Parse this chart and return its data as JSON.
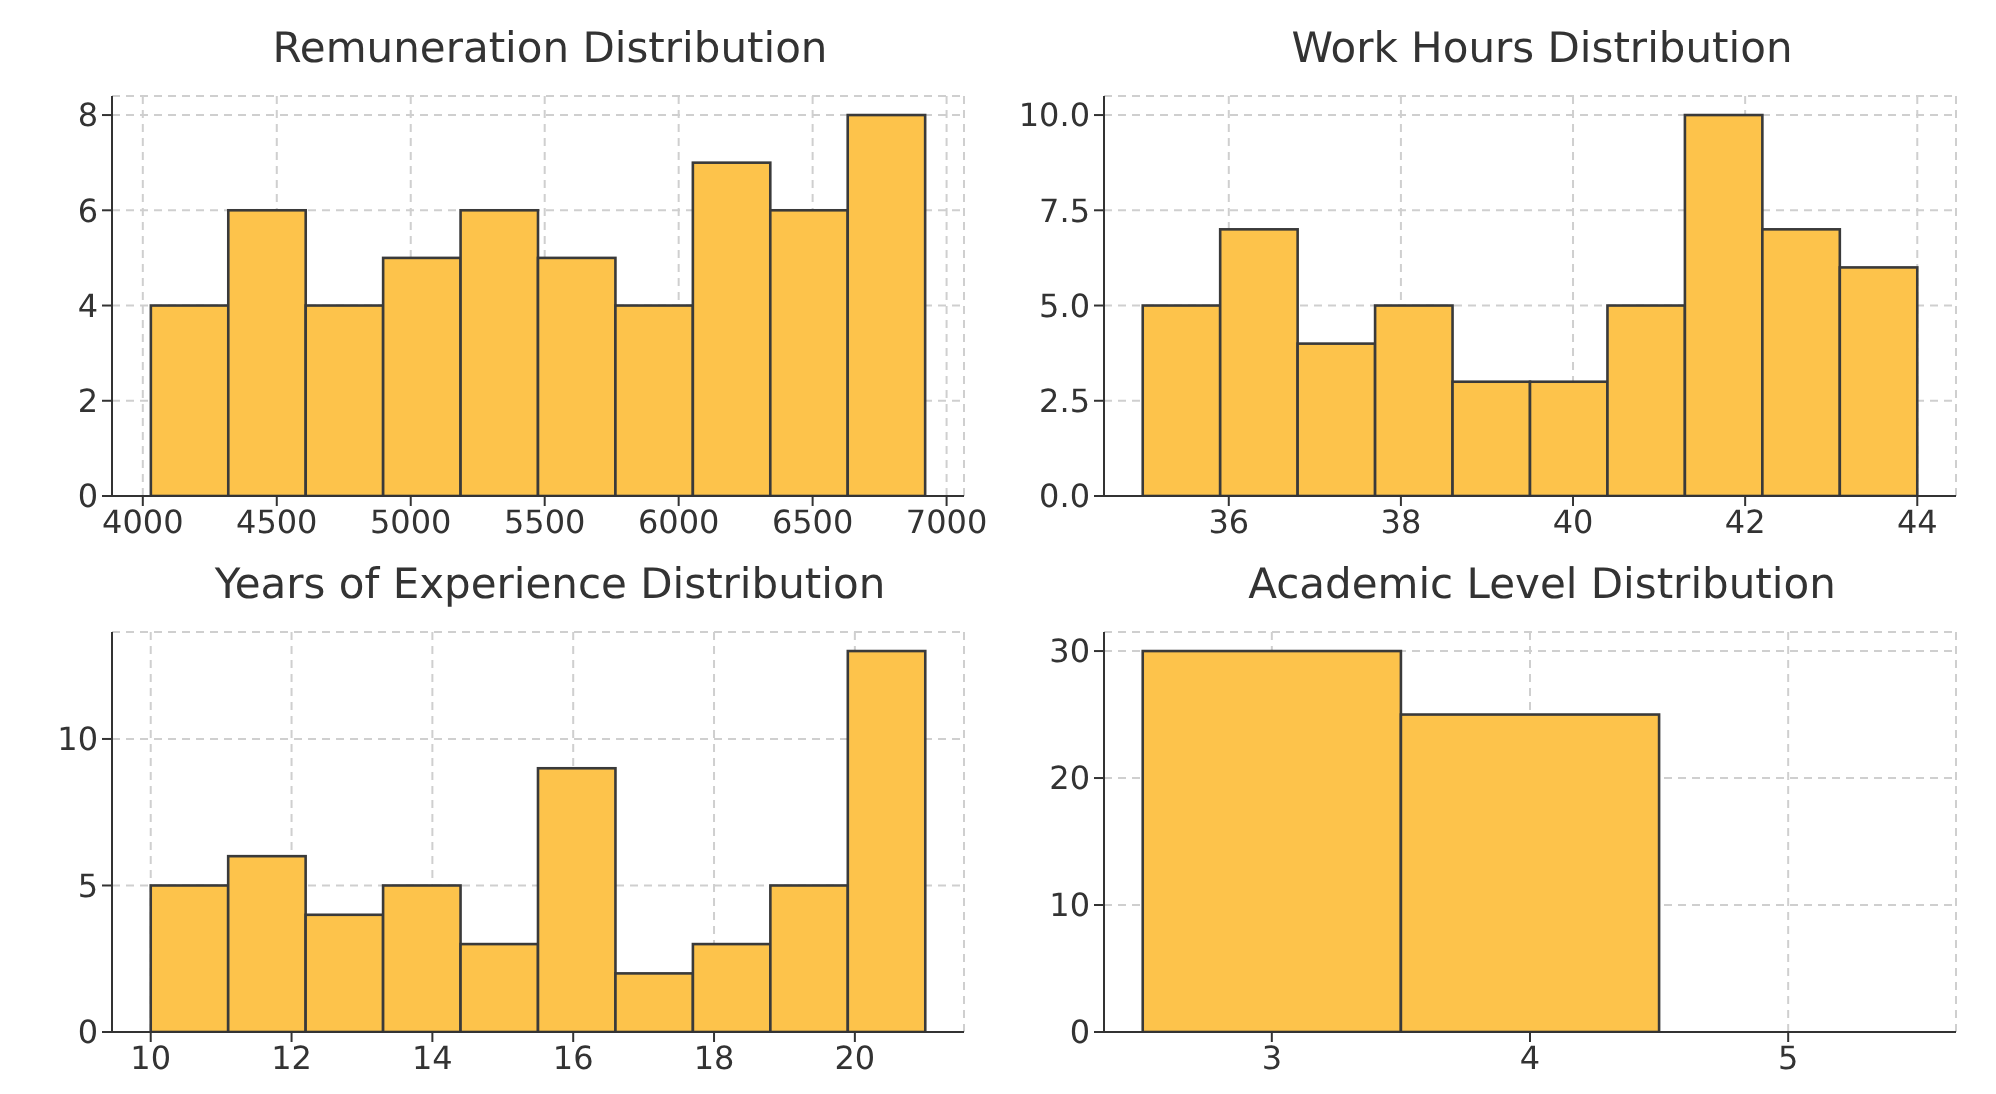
{
  "chart_data": [
    {
      "type": "histogram",
      "title": "Remuneration Distribution",
      "bins": [
        4030,
        4319,
        4608,
        4897,
        5186,
        5475,
        5764,
        6053,
        6342,
        6631,
        6920
      ],
      "values": [
        4,
        6,
        4,
        5,
        6,
        5,
        4,
        7,
        6,
        8
      ],
      "color": "#fdc34b",
      "xlim": [
        3885,
        7065
      ],
      "xticks": [
        4000,
        4500,
        5000,
        5500,
        6000,
        6500,
        7000
      ],
      "ylim": [
        0,
        8.4
      ],
      "yticks": [
        0,
        2,
        4,
        6,
        8
      ],
      "grid": true
    },
    {
      "type": "histogram",
      "title": "Work Hours Distribution",
      "bins": [
        35,
        35.9,
        36.8,
        37.7,
        38.6,
        39.5,
        40.4,
        41.3,
        42.2,
        43.1,
        44
      ],
      "values": [
        5,
        7,
        4,
        5,
        3,
        3,
        5,
        10,
        7,
        6
      ],
      "color": "#fdc34b",
      "xlim": [
        34.55,
        44.45
      ],
      "xticks": [
        36,
        38,
        40,
        42,
        44
      ],
      "ylim": [
        0,
        10.5
      ],
      "yticks": [
        {
          "value": 0,
          "label": "0.0"
        },
        {
          "value": 2.5,
          "label": "2.5"
        },
        {
          "value": 5,
          "label": "5.0"
        },
        {
          "value": 7.5,
          "label": "7.5"
        },
        {
          "value": 10,
          "label": "10.0"
        }
      ],
      "grid": true
    },
    {
      "type": "histogram",
      "title": "Years of Experience Distribution",
      "bins": [
        10,
        11.1,
        12.2,
        13.3,
        14.4,
        15.5,
        16.6,
        17.7,
        18.8,
        19.9,
        21
      ],
      "values": [
        5,
        6,
        4,
        5,
        3,
        9,
        2,
        3,
        5,
        13
      ],
      "color": "#fdc34b",
      "xlim": [
        9.45,
        21.55
      ],
      "xticks": [
        10,
        12,
        14,
        16,
        18,
        20
      ],
      "ylim": [
        0,
        13.65
      ],
      "yticks": [
        0,
        5,
        10
      ],
      "grid": true
    },
    {
      "type": "histogram",
      "title": "Academic Level Distribution",
      "bins": [
        2.5,
        3.5,
        4.5,
        5.5
      ],
      "values": [
        30,
        25,
        0
      ],
      "color": "#fdc34b",
      "xlim": [
        2.35,
        5.65
      ],
      "xticks": [
        3,
        4,
        5
      ],
      "ylim": [
        0,
        31.5
      ],
      "yticks": [
        0,
        10,
        20,
        30
      ],
      "grid": true
    }
  ]
}
